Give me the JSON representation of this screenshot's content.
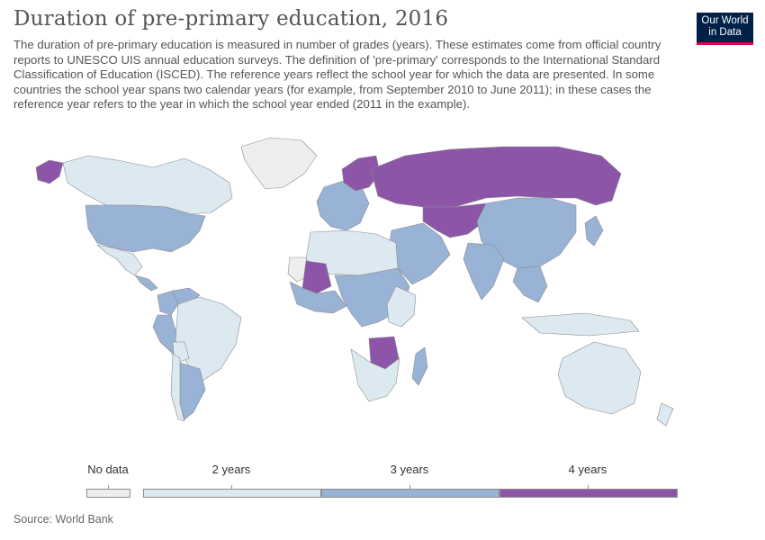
{
  "header": {
    "title": "Duration of pre-primary education, 2016",
    "subtitle": "The duration of pre-primary education is measured in number of grades (years). These estimates come from official country reports to UNESCO UIS annual education surveys. The definition of 'pre-primary' corresponds to the International Standard Classification of Education (ISCED). The reference years reflect the school year for which the data are presented. In some countries the school year spans two calendar years (for example, from September 2010 to June 2011); in these cases the reference year refers to the year in which the school year ended (2011 in the example).",
    "logo": "Our World in Data"
  },
  "colors": {
    "no_data": "#eeeeee",
    "two_years": "#dde9f0",
    "three_years": "#98b3d6",
    "four_years": "#8c55a8",
    "border": "#8b8b8b",
    "logo_bg": "#002147",
    "logo_accent": "#e3004a"
  },
  "legend": {
    "items": [
      {
        "label": "No data",
        "color": "#eeeeee"
      },
      {
        "label": "2 years",
        "color": "#dde9f0"
      },
      {
        "label": "3 years",
        "color": "#98b3d6"
      },
      {
        "label": "4 years",
        "color": "#8c55a8"
      }
    ]
  },
  "map_regions": [
    {
      "name": "Greenland",
      "value": "No data"
    },
    {
      "name": "Alaska",
      "value": "4 years"
    },
    {
      "name": "Canada",
      "value": "2 years"
    },
    {
      "name": "United States",
      "value": "3 years"
    },
    {
      "name": "Mexico",
      "value": "2 years"
    },
    {
      "name": "Central America",
      "value": "3 years"
    },
    {
      "name": "Colombia",
      "value": "3 years"
    },
    {
      "name": "Venezuela",
      "value": "3 years"
    },
    {
      "name": "Peru",
      "value": "3 years"
    },
    {
      "name": "Brazil",
      "value": "2 years"
    },
    {
      "name": "Bolivia",
      "value": "2 years"
    },
    {
      "name": "Argentina",
      "value": "3 years"
    },
    {
      "name": "Chile",
      "value": "2 years"
    },
    {
      "name": "Western Europe",
      "value": "3 years"
    },
    {
      "name": "Scandinavia",
      "value": "4 years"
    },
    {
      "name": "Russia",
      "value": "4 years"
    },
    {
      "name": "Central Asia",
      "value": "4 years"
    },
    {
      "name": "China",
      "value": "3 years"
    },
    {
      "name": "India",
      "value": "3 years"
    },
    {
      "name": "Middle East",
      "value": "3 years"
    },
    {
      "name": "North Africa",
      "value": "2 years"
    },
    {
      "name": "Western Sahara",
      "value": "No data"
    },
    {
      "name": "Mali",
      "value": "4 years"
    },
    {
      "name": "West Africa",
      "value": "3 years"
    },
    {
      "name": "Central Africa",
      "value": "3 years"
    },
    {
      "name": "East Africa",
      "value": "2 years"
    },
    {
      "name": "Zambia",
      "value": "4 years"
    },
    {
      "name": "Southern Africa",
      "value": "2 years"
    },
    {
      "name": "Madagascar",
      "value": "3 years"
    },
    {
      "name": "Southeast Asia",
      "value": "3 years"
    },
    {
      "name": "Indonesia",
      "value": "2 years"
    },
    {
      "name": "Japan",
      "value": "3 years"
    },
    {
      "name": "Australia",
      "value": "2 years"
    },
    {
      "name": "New Zealand",
      "value": "2 years"
    }
  ],
  "source": "Source: World Bank"
}
